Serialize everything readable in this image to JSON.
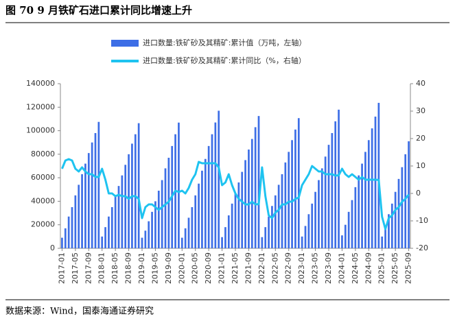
{
  "chart_data": {
    "type": "bar",
    "title": "图 70 9 月铁矿石进口累计同比增速上升",
    "source": "数据来源：Wind，国泰海通证券研究",
    "categories": [
      "2017-01",
      null,
      null,
      null,
      "2017-05",
      null,
      null,
      null,
      "2017-09",
      null,
      null,
      null,
      "2018-01",
      null,
      null,
      null,
      "2018-05",
      null,
      null,
      null,
      "2018-09",
      null,
      null,
      null,
      "2019-01",
      null,
      null,
      null,
      "2019-05",
      null,
      null,
      null,
      "2019-09",
      null,
      null,
      null,
      "2020-01",
      null,
      null,
      null,
      "2020-05",
      null,
      null,
      null,
      "2020-09",
      null,
      null,
      null,
      "2021-01",
      null,
      null,
      null,
      "2021-05",
      null,
      null,
      null,
      "2021-09",
      null,
      null,
      null,
      "2022-01",
      null,
      null,
      null,
      "2022-05",
      null,
      null,
      null,
      "2022-09",
      null,
      null,
      null,
      "2023-01",
      null,
      null,
      null,
      "2023-05",
      null,
      null,
      null,
      "2023-09",
      null,
      null,
      null,
      "2024-01",
      null,
      null,
      null,
      "2024-05",
      null,
      null,
      null,
      "2024-09",
      null,
      null,
      null,
      "2025-01",
      null,
      null,
      null,
      "2025-05",
      null,
      null,
      null,
      "2025-09"
    ],
    "series": [
      {
        "name": "进口数量:铁矿砂及其精矿:累计值（万吨，左轴）",
        "type": "bar",
        "color": "#3d6ee6",
        "values": [
          9000,
          17000,
          27000,
          35000,
          45000,
          54000,
          63000,
          72000,
          81000,
          90000,
          98000,
          107500,
          10000,
          18000,
          27000,
          35000,
          44000,
          53000,
          62000,
          71000,
          80000,
          89000,
          97000,
          106400,
          9000,
          15000,
          23000,
          31000,
          40000,
          49000,
          58000,
          68000,
          77000,
          87000,
          97000,
          106900,
          9000,
          17000,
          26000,
          35000,
          45000,
          55000,
          66000,
          76000,
          87000,
          97000,
          107000,
          117000,
          9500,
          18000,
          28000,
          38000,
          47000,
          56000,
          65000,
          75000,
          84000,
          93000,
          103000,
          112500,
          9500,
          18000,
          27000,
          36000,
          45000,
          54000,
          63000,
          73000,
          82000,
          92000,
          101000,
          110700,
          10000,
          19000,
          29000,
          38000,
          48000,
          58000,
          68000,
          78000,
          88000,
          98000,
          108000,
          117900,
          11000,
          20000,
          31000,
          41000,
          52000,
          62000,
          72000,
          82000,
          92000,
          102000,
          112000,
          123700,
          10000,
          19000,
          29000,
          38000,
          48000,
          59000,
          69000,
          80000,
          91000
        ]
      },
      {
        "name": "进口数量:铁矿砂及其精矿:累计同比（%，右轴）",
        "type": "line",
        "axis": "y2",
        "color": "#1ec3f0",
        "values": [
          9,
          12,
          12.5,
          12,
          9,
          8,
          9.5,
          8,
          7,
          7,
          6,
          6,
          9,
          5,
          0,
          0,
          -1,
          -0.5,
          -1,
          -1,
          -2,
          -1,
          -1,
          -2,
          -9,
          -5,
          -4,
          -4,
          -5,
          -6,
          -5,
          -4,
          -3,
          -1,
          1,
          0.5,
          1,
          0,
          2,
          5,
          7,
          11.5,
          11,
          11,
          11,
          11,
          11,
          9.5,
          3,
          4,
          7,
          3,
          0,
          -2,
          -3,
          -4,
          -4,
          -3,
          -4,
          -3.9,
          9.5,
          -1,
          -8,
          -9,
          -7,
          -6,
          -4,
          -4,
          -3,
          -3,
          -2,
          -1.5,
          3,
          5,
          7,
          10,
          9,
          8,
          8,
          7,
          7,
          7,
          6.5,
          6.6,
          9,
          7,
          6,
          7,
          6,
          5,
          6,
          5,
          5,
          5,
          5,
          4.9,
          -8.5,
          -13,
          -9,
          -8,
          -6,
          -5,
          -3,
          -2,
          -0.4
        ]
      }
    ],
    "ylim": [
      0,
      140000
    ],
    "yticks": [
      0,
      20000,
      40000,
      60000,
      80000,
      100000,
      120000,
      140000
    ],
    "y2lim": [
      -20,
      40
    ],
    "y2ticks": [
      -20,
      -10,
      0,
      10,
      20,
      30,
      40
    ]
  }
}
